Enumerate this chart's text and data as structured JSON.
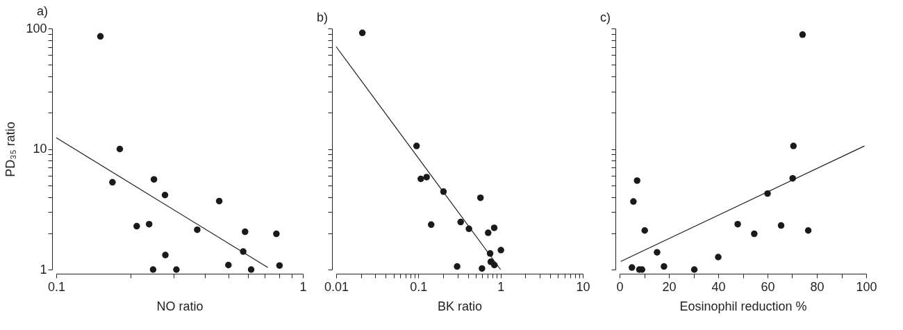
{
  "chart_data": [
    {
      "type": "scatter",
      "title": "a)",
      "xlabel": "NO ratio",
      "ylabel": "PD₃₅ ratio",
      "log": "xy",
      "marker": "circle",
      "xlim": [
        0.1,
        1
      ],
      "xticks": [
        0.1,
        {
          "value": 0.2,
          "label": null
        },
        {
          "value": 0.3,
          "label": null
        },
        {
          "value": 0.4,
          "label": null
        },
        {
          "value": 0.5,
          "label": null
        },
        {
          "value": 0.6,
          "label": null
        },
        {
          "value": 0.7,
          "label": null
        },
        {
          "value": 0.8,
          "label": null
        },
        {
          "value": 0.9,
          "label": null
        },
        1
      ],
      "ylim": [
        1,
        100
      ],
      "yticks": [
        1,
        {
          "value": 2,
          "label": null
        },
        {
          "value": 3,
          "label": null
        },
        {
          "value": 4,
          "label": null
        },
        {
          "value": 5,
          "label": null
        },
        {
          "value": 6,
          "label": null
        },
        {
          "value": 7,
          "label": null
        },
        {
          "value": 8,
          "label": null
        },
        {
          "value": 9,
          "label": null
        },
        10,
        {
          "value": 20,
          "label": null
        },
        {
          "value": 30,
          "label": null
        },
        {
          "value": 40,
          "label": null
        },
        {
          "value": 50,
          "label": null
        },
        {
          "value": 60,
          "label": null
        },
        {
          "value": 70,
          "label": null
        },
        {
          "value": 80,
          "label": null
        },
        {
          "value": 90,
          "label": null
        },
        100
      ],
      "series": [
        {
          "type": "scatter",
          "color": "#1a1a1a",
          "x": [
            0.151,
            0.181,
            0.169,
            0.249,
            0.276,
            0.212,
            0.238,
            0.458,
            0.373,
            0.583,
            0.781,
            0.573,
            0.277,
            0.499,
            0.804,
            0.247,
            0.307,
            0.617
          ],
          "values": [
            86,
            10,
            5.3,
            5.6,
            4.15,
            2.29,
            2.38,
            3.7,
            2.14,
            2.06,
            1.98,
            1.41,
            1.32,
            1.09,
            1.08,
            1,
            1,
            1
          ]
        },
        {
          "type": "line",
          "color": "#1a1a1a",
          "marker": "none",
          "line_style": "solid",
          "x": [
            0.1,
            0.721
          ],
          "values": [
            12.4,
            1.04
          ]
        }
      ]
    },
    {
      "type": "scatter",
      "title": "b)",
      "xlabel": "BK ratio",
      "log": "xy",
      "marker": "circle",
      "tick_labels": "x",
      "xlim": [
        0.01,
        10
      ],
      "xticks": [
        0.01,
        {
          "value": 0.02,
          "label": null
        },
        {
          "value": 0.03,
          "label": null
        },
        {
          "value": 0.04,
          "label": null
        },
        {
          "value": 0.05,
          "label": null
        },
        {
          "value": 0.06,
          "label": null
        },
        {
          "value": 0.07,
          "label": null
        },
        {
          "value": 0.08,
          "label": null
        },
        {
          "value": 0.09,
          "label": null
        },
        0.1,
        {
          "value": 0.2,
          "label": null
        },
        {
          "value": 0.3,
          "label": null
        },
        {
          "value": 0.4,
          "label": null
        },
        {
          "value": 0.5,
          "label": null
        },
        {
          "value": 0.6,
          "label": null
        },
        {
          "value": 0.7,
          "label": null
        },
        {
          "value": 0.8,
          "label": null
        },
        {
          "value": 0.9,
          "label": null
        },
        1,
        {
          "value": 2,
          "label": null
        },
        {
          "value": 3,
          "label": null
        },
        {
          "value": 4,
          "label": null
        },
        {
          "value": 5,
          "label": null
        },
        {
          "value": 6,
          "label": null
        },
        {
          "value": 7,
          "label": null
        },
        {
          "value": 8,
          "label": null
        },
        {
          "value": 9,
          "label": null
        },
        10
      ],
      "ylim": [
        1,
        100
      ],
      "yticks": [
        1,
        2,
        3,
        4,
        5,
        6,
        7,
        8,
        9,
        10,
        20,
        30,
        40,
        50,
        60,
        70,
        80,
        90,
        100
      ],
      "series": [
        {
          "type": "scatter",
          "color": "#1a1a1a",
          "x": [
            0.0208,
            0.095,
            0.107,
            0.126,
            0.202,
            0.569,
            0.143,
            0.327,
            0.412,
            0.706,
            0.836,
            1.01,
            0.746,
            0.76,
            0.84,
            0.296,
            0.594
          ],
          "values": [
            92,
            10.6,
            5.65,
            5.85,
            4.43,
            3.94,
            2.36,
            2.48,
            2.18,
            2.02,
            2.22,
            1.45,
            1.36,
            1.16,
            1.09,
            1.06,
            1.02
          ]
        },
        {
          "type": "line",
          "color": "#1a1a1a",
          "marker": "none",
          "line_style": "solid",
          "x": [
            0.01,
            1
          ],
          "values": [
            70.6,
            1
          ]
        }
      ]
    },
    {
      "type": "scatter",
      "title": "c)",
      "xlabel": "Eosinophil reduction %",
      "log": "y",
      "marker": "circle",
      "tick_labels": "x",
      "xlim": [
        0,
        100
      ],
      "xticks": [
        0,
        {
          "value": 10,
          "label": null
        },
        20,
        {
          "value": 30,
          "label": null
        },
        40,
        {
          "value": 50,
          "label": null
        },
        60,
        {
          "value": 70,
          "label": null
        },
        80,
        {
          "value": 90,
          "label": null
        },
        100
      ],
      "ylim": [
        1,
        100
      ],
      "yticks": [
        1,
        2,
        3,
        4,
        5,
        6,
        7,
        8,
        9,
        10,
        20,
        30,
        40,
        50,
        60,
        70,
        80,
        90,
        100
      ],
      "series": [
        {
          "type": "scatter",
          "color": "#1a1a1a",
          "x": [
            74.2,
            70.5,
            70.2,
            60,
            7.1,
            5.6,
            10.2,
            47.9,
            54.6,
            65.5,
            76.5,
            15.2,
            40,
            5,
            18,
            8,
            9.1,
            30.3
          ],
          "values": [
            89,
            10.6,
            5.71,
            4.27,
            5.47,
            3.67,
            2.11,
            2.38,
            1.98,
            2.32,
            2.11,
            1.39,
            1.27,
            1.04,
            1.06,
            1,
            1,
            1
          ]
        },
        {
          "type": "line",
          "color": "#1a1a1a",
          "marker": "none",
          "line_style": "solid",
          "x": [
            0.5,
            99.3
          ],
          "values": [
            1.17,
            10.6
          ]
        }
      ]
    }
  ]
}
